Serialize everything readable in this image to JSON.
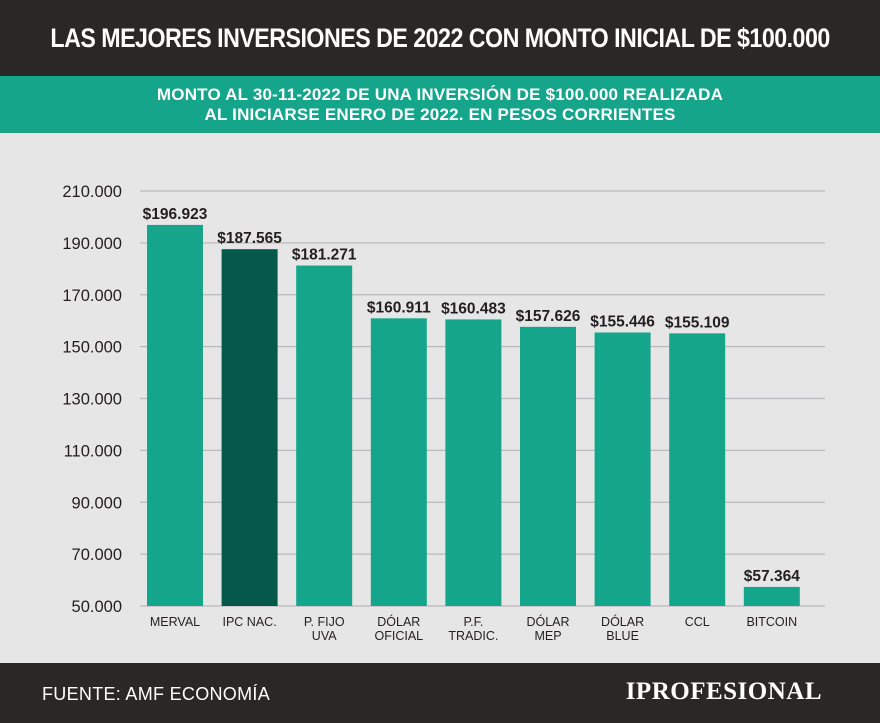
{
  "header": {
    "title": "LAS MEJORES INVERSIONES DE 2022 CON MONTO INICIAL DE $100.000"
  },
  "subheader": {
    "line1": "MONTO AL 30-11-2022 DE UNA INVERSIÓN DE $100.000 REALIZADA",
    "line2": "AL INICIARSE ENERO DE 2022. EN PESOS CORRIENTES"
  },
  "footer": {
    "source": "FUENTE: AMF ECONOMÍA",
    "brand": "IPROFESIONAL"
  },
  "colors": {
    "bar": "#14a58a",
    "bar_highlight": "#04594a",
    "header_bg": "#2a2727",
    "band": "#14a58a",
    "plot_bg": "#e6e6e7"
  },
  "chart_data": {
    "type": "bar",
    "categories": [
      [
        "MERVAL"
      ],
      [
        "IPC  NAC."
      ],
      [
        "P. FIJO",
        "UVA"
      ],
      [
        "DÓLAR",
        "OFICIAL"
      ],
      [
        "P.F.",
        "TRADIC."
      ],
      [
        "DÓLAR",
        "MEP"
      ],
      [
        "DÓLAR",
        "BLUE"
      ],
      [
        "CCL"
      ],
      [
        "BITCOIN"
      ]
    ],
    "values": [
      196923,
      187565,
      181271,
      160911,
      160483,
      157626,
      155446,
      155109,
      57364
    ],
    "value_labels": [
      "$196.923",
      "$187.565",
      "$181.271",
      "$160.911",
      "$160.483",
      "$157.626",
      "$155.446",
      "$155.109",
      "$57.364"
    ],
    "highlight_index": 1,
    "yticks": [
      50000,
      70000,
      90000,
      110000,
      130000,
      150000,
      170000,
      190000,
      210000
    ],
    "ytick_labels": [
      "50.000",
      "70.000",
      "90.000",
      "110.000",
      "130.000",
      "150.000",
      "170.000",
      "190.000",
      "210.000"
    ],
    "ylim": [
      50000,
      210000
    ],
    "grid": true
  }
}
